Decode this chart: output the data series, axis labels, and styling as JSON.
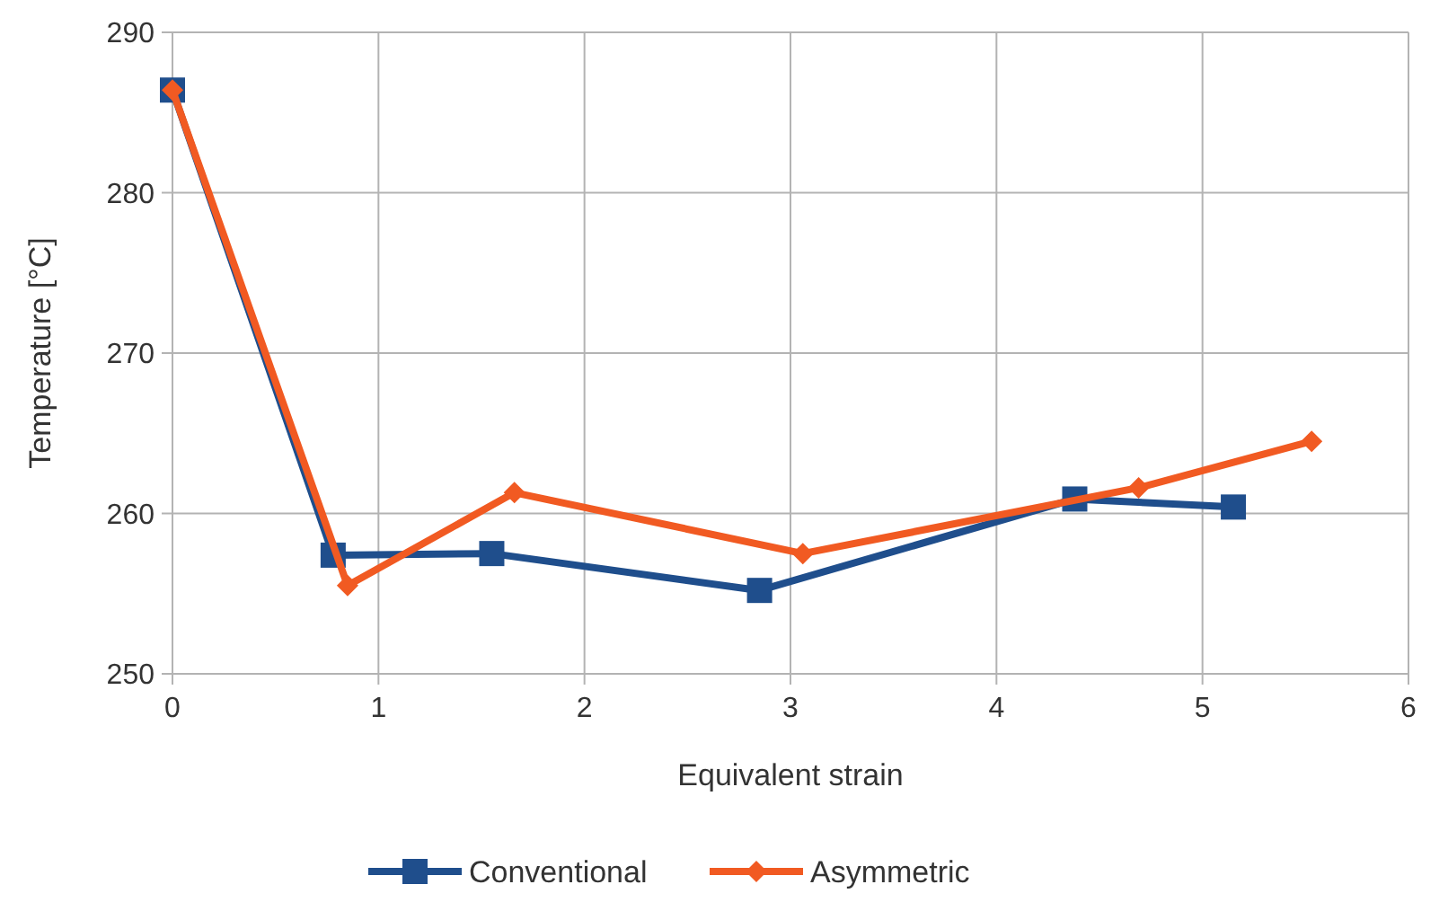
{
  "chart_data": {
    "type": "line",
    "xlabel": "Equivalent strain",
    "ylabel": "Temperature [°C]",
    "xlim": [
      0,
      6
    ],
    "xticks": [
      0,
      1,
      2,
      3,
      4,
      5,
      6
    ],
    "ylim": [
      250,
      290
    ],
    "yticks": [
      250,
      260,
      270,
      280,
      290
    ],
    "grid": true,
    "legend": "bottom",
    "series": [
      {
        "name": "Conventional",
        "color": "#1f4e8c",
        "marker": "square",
        "x": [
          0,
          0.78,
          1.55,
          2.85,
          4.38,
          5.15
        ],
        "values": [
          286.4,
          257.4,
          257.5,
          255.2,
          260.9,
          260.4
        ]
      },
      {
        "name": "Asymmetric",
        "color": "#f15a22",
        "marker": "diamond",
        "x": [
          0,
          0.85,
          1.66,
          3.06,
          4.69,
          5.53
        ],
        "values": [
          286.4,
          255.5,
          261.3,
          257.5,
          261.6,
          264.5
        ]
      }
    ]
  }
}
